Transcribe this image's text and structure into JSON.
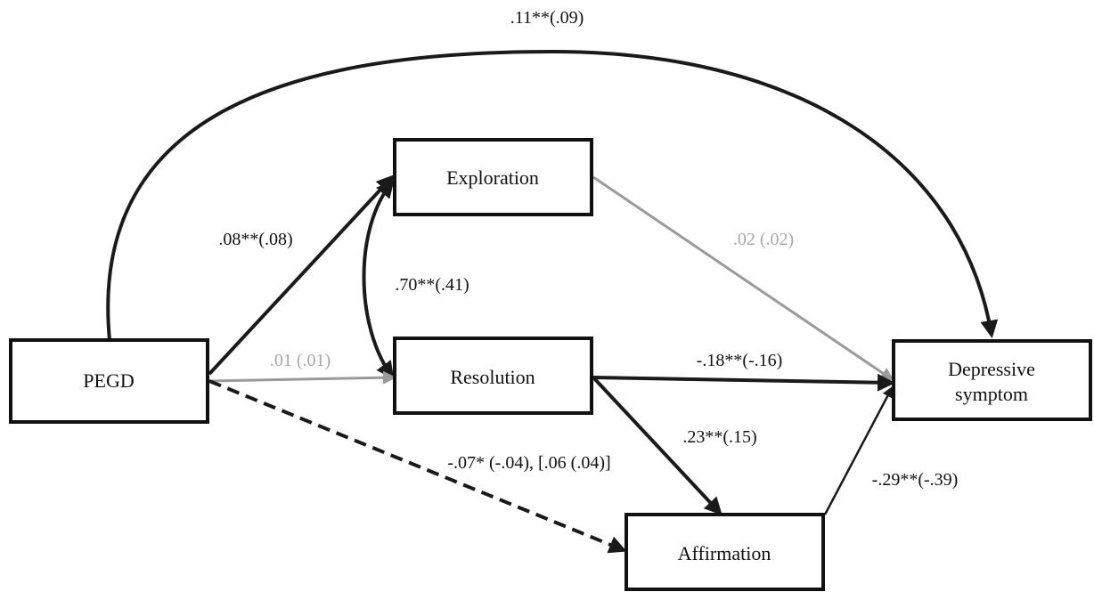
{
  "nodes": {
    "pegd": "PEGD",
    "exploration": "Exploration",
    "resolution": "Resolution",
    "affirmation": "Affirmation",
    "depressive_line1": "Depressive",
    "depressive_line2": "symptom"
  },
  "paths": {
    "pegd_to_depressive": ".11**(.09)",
    "pegd_to_exploration": ".08**(.08)",
    "exploration_resolution_cov": ".70**(.41)",
    "pegd_to_resolution": ".01 (.01)",
    "exploration_to_depressive": ".02 (.02)",
    "resolution_to_depressive": "-.18**(-.16)",
    "resolution_to_affirmation": ".23**(.15)",
    "pegd_to_affirmation": "-.07* (-.04), [.06 (.04)]",
    "affirmation_to_depressive": "-.29**(-.39)"
  },
  "colors": {
    "significant": "#1a1a1a",
    "nonsignificant": "#9a9a9a"
  }
}
